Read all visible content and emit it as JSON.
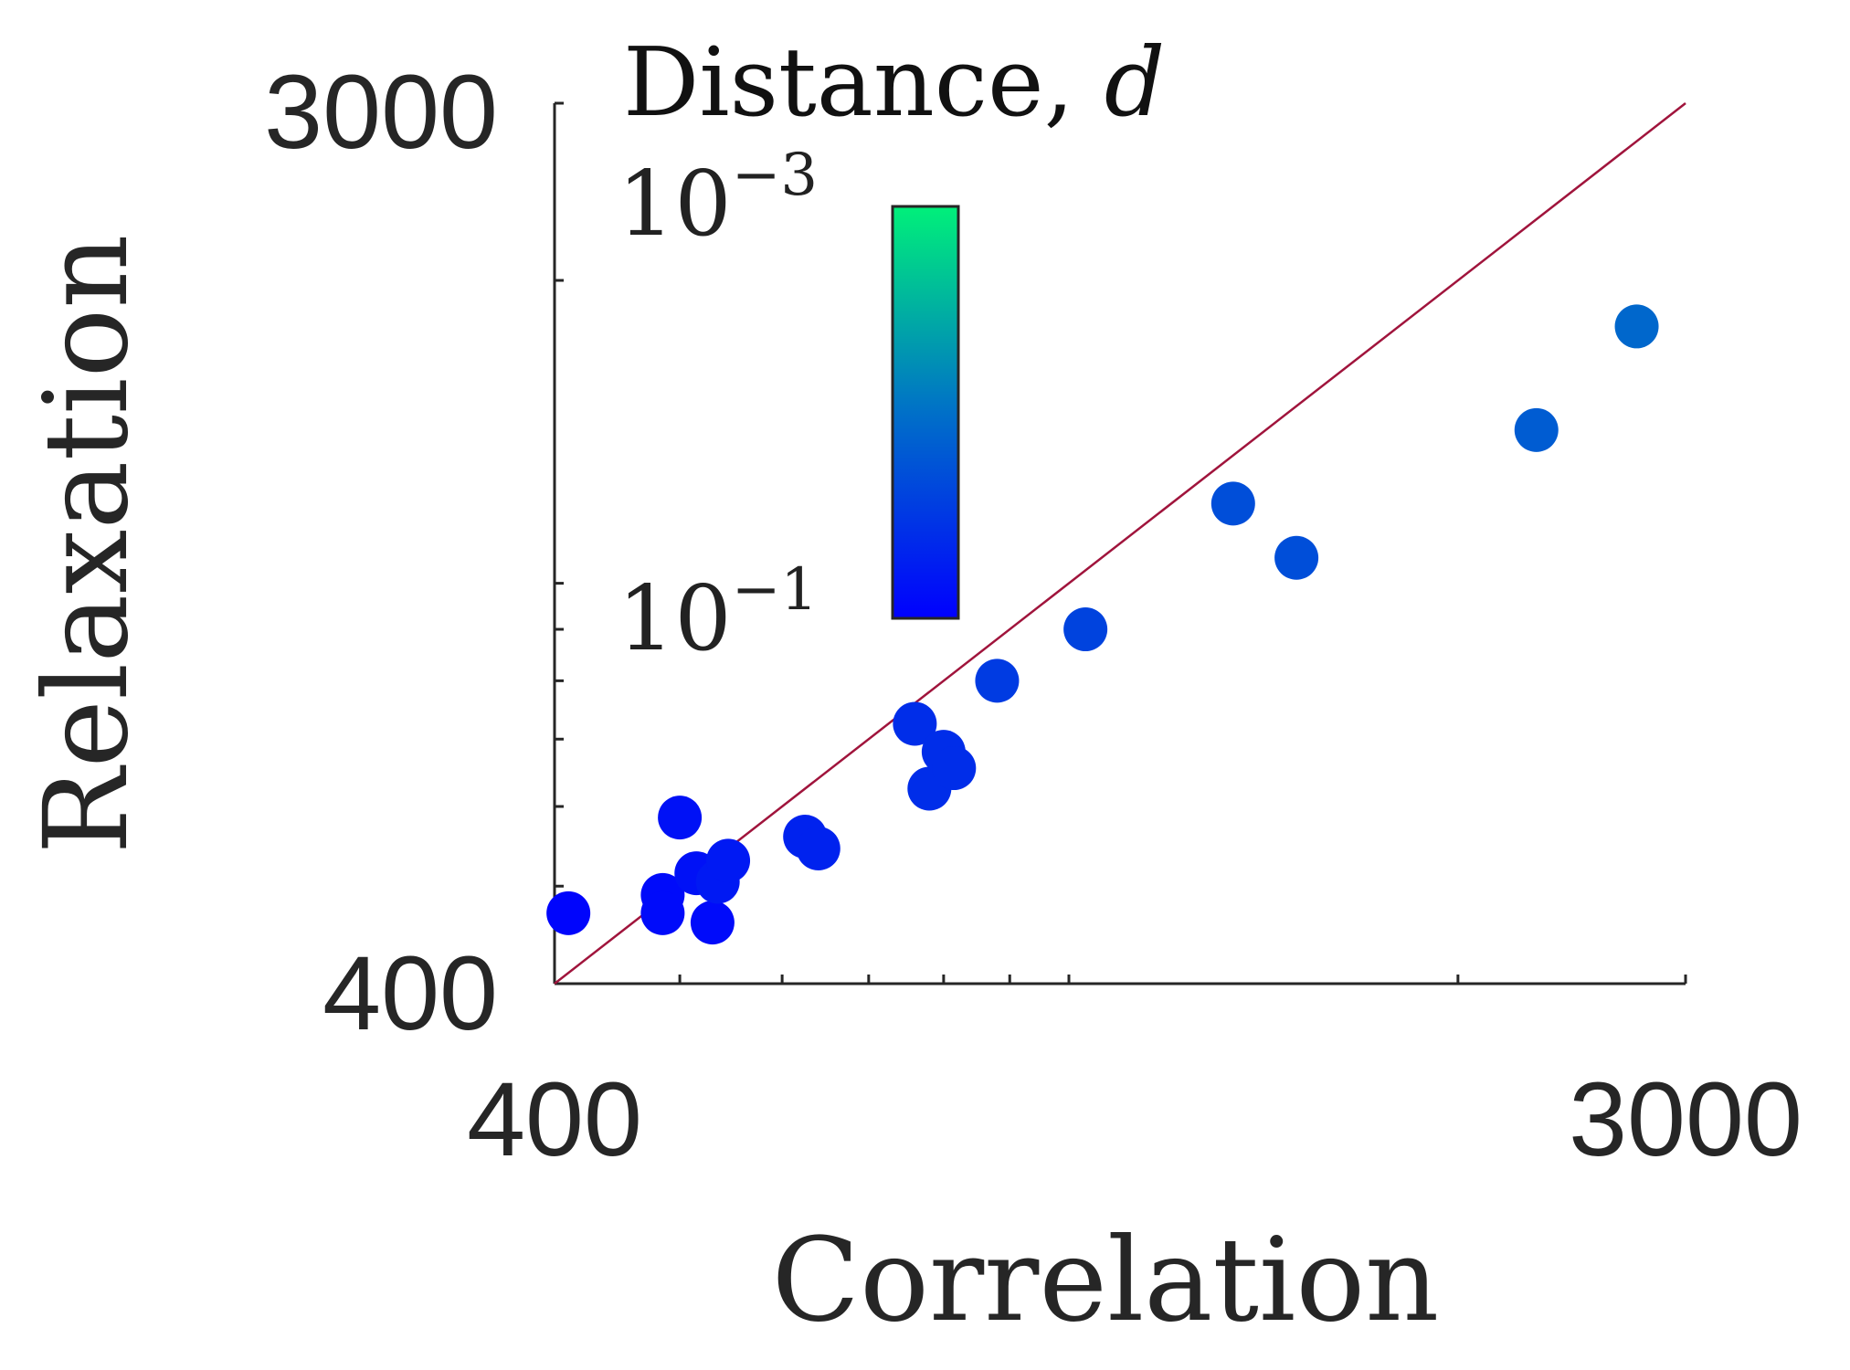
{
  "chart_data": {
    "type": "scatter",
    "xlabel": "Correlation",
    "ylabel": "Relaxation",
    "xscale": "log",
    "yscale": "log",
    "xlim": [
      400,
      3000
    ],
    "ylim": [
      400,
      3000
    ],
    "x_tick_labels": [
      "400",
      "3000"
    ],
    "y_tick_labels": [
      "400",
      "3000"
    ],
    "reference_line": "y = x",
    "reference_line_color": "#a0143c",
    "grid": false,
    "colorbar": {
      "title_text": "Distance, ",
      "title_var": "d",
      "scale": "log",
      "top_label_base": "10",
      "top_label_exp": "−3",
      "bottom_label_base": "10",
      "bottom_label_exp": "−1",
      "color_top": "#00f07a",
      "color_mid": "#0070c8",
      "color_bottom": "#0000ff",
      "placement": "inside top-left"
    },
    "points": [
      {
        "x": 410,
        "y": 470,
        "d": 0.09
      },
      {
        "x": 485,
        "y": 490,
        "d": 0.08
      },
      {
        "x": 485,
        "y": 470,
        "d": 0.08
      },
      {
        "x": 500,
        "y": 585,
        "d": 0.07
      },
      {
        "x": 515,
        "y": 515,
        "d": 0.07
      },
      {
        "x": 530,
        "y": 460,
        "d": 0.08
      },
      {
        "x": 535,
        "y": 505,
        "d": 0.06
      },
      {
        "x": 545,
        "y": 530,
        "d": 0.06
      },
      {
        "x": 625,
        "y": 560,
        "d": 0.05
      },
      {
        "x": 640,
        "y": 545,
        "d": 0.05
      },
      {
        "x": 760,
        "y": 725,
        "d": 0.04
      },
      {
        "x": 780,
        "y": 625,
        "d": 0.04
      },
      {
        "x": 800,
        "y": 680,
        "d": 0.04
      },
      {
        "x": 815,
        "y": 655,
        "d": 0.04
      },
      {
        "x": 880,
        "y": 800,
        "d": 0.03
      },
      {
        "x": 1030,
        "y": 900,
        "d": 0.025
      },
      {
        "x": 1340,
        "y": 1200,
        "d": 0.02
      },
      {
        "x": 1500,
        "y": 1060,
        "d": 0.02
      },
      {
        "x": 2300,
        "y": 1420,
        "d": 0.015
      },
      {
        "x": 2750,
        "y": 1800,
        "d": 0.012
      }
    ]
  }
}
